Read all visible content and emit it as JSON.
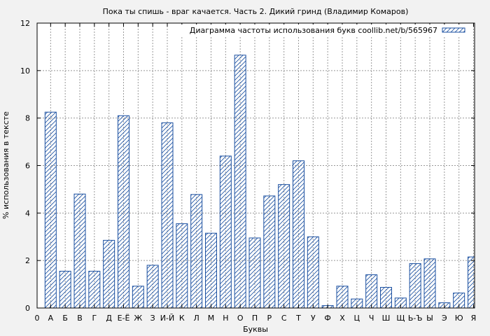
{
  "chart_data": {
    "type": "bar",
    "title": "Пока ты спишь - враг качается. Часть 2. Дикий гринд (Владимир Комаров)",
    "xlabel": "Буквы",
    "ylabel": "% использования в тексте",
    "legend": {
      "label": "Диаграмма частоты использования букв coollib.net/b/565967",
      "placement": "top-right"
    },
    "ylim": [
      0,
      12
    ],
    "yticks": [
      "0",
      "2",
      "4",
      "6",
      "8",
      "10",
      "12"
    ],
    "x_origin_label": "0",
    "grid": true,
    "bar_color": "#1a4fa0",
    "categories": [
      "А",
      "Б",
      "В",
      "Г",
      "Д",
      "Е-Ё",
      "Ж",
      "З",
      "И-Й",
      "К",
      "Л",
      "М",
      "Н",
      "О",
      "П",
      "Р",
      "С",
      "Т",
      "У",
      "Ф",
      "Х",
      "Ц",
      "Ч",
      "Ш",
      "Щ",
      "Ь-Ъ",
      "Ы",
      "Э",
      "Ю",
      "Я"
    ],
    "values": [
      8.25,
      1.55,
      4.8,
      1.55,
      2.85,
      8.1,
      0.92,
      1.8,
      7.8,
      3.55,
      4.78,
      3.15,
      6.4,
      10.65,
      2.95,
      4.72,
      5.2,
      6.2,
      3.0,
      0.1,
      0.92,
      0.38,
      1.4,
      0.87,
      0.42,
      1.87,
      2.07,
      0.22,
      0.63,
      2.15
    ]
  }
}
